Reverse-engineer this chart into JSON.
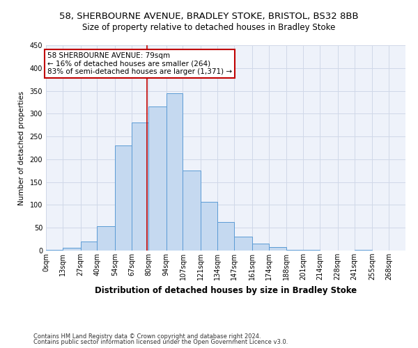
{
  "title_line1": "58, SHERBOURNE AVENUE, BRADLEY STOKE, BRISTOL, BS32 8BB",
  "title_line2": "Size of property relative to detached houses in Bradley Stoke",
  "xlabel": "Distribution of detached houses by size in Bradley Stoke",
  "ylabel": "Number of detached properties",
  "footnote1": "Contains HM Land Registry data © Crown copyright and database right 2024.",
  "footnote2": "Contains public sector information licensed under the Open Government Licence v3.0.",
  "bin_labels": [
    "0sqm",
    "13sqm",
    "27sqm",
    "40sqm",
    "54sqm",
    "67sqm",
    "80sqm",
    "94sqm",
    "107sqm",
    "121sqm",
    "134sqm",
    "147sqm",
    "161sqm",
    "174sqm",
    "188sqm",
    "201sqm",
    "214sqm",
    "228sqm",
    "241sqm",
    "255sqm",
    "268sqm"
  ],
  "bar_heights": [
    2,
    6,
    20,
    54,
    230,
    280,
    316,
    345,
    176,
    107,
    62,
    30,
    15,
    8,
    2,
    1,
    0,
    0,
    2,
    0,
    0
  ],
  "bar_color": "#c5d9f0",
  "bar_edge_color": "#5b9bd5",
  "grid_color": "#d0d8e8",
  "bg_color": "#eef2fa",
  "vline_x": 79,
  "vline_color": "#c00000",
  "annotation_text": "58 SHERBOURNE AVENUE: 79sqm\n← 16% of detached houses are smaller (264)\n83% of semi-detached houses are larger (1,371) →",
  "annotation_box_color": "#c00000",
  "ylim": [
    0,
    450
  ],
  "yticks": [
    0,
    50,
    100,
    150,
    200,
    250,
    300,
    350,
    400,
    450
  ],
  "title1_fontsize": 9.5,
  "title2_fontsize": 8.5,
  "xlabel_fontsize": 8.5,
  "ylabel_fontsize": 7.5,
  "tick_fontsize": 7,
  "annot_fontsize": 7.5,
  "footnote_fontsize": 6
}
